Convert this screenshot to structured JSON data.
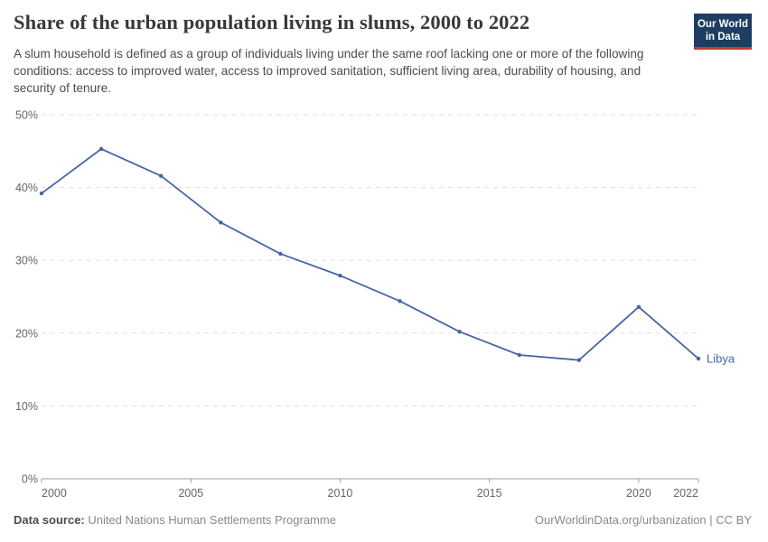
{
  "header": {
    "title": "Share of the urban population living in slums, 2000 to 2022",
    "subtitle": "A slum household is defined as a group of individuals living under the same roof lacking one or more of the following conditions: access to improved water, access to improved sanitation, sufficient living area, durability of housing, and security of tenure."
  },
  "logo": {
    "line1": "Our World",
    "line2": "in Data",
    "bg_color": "#1d3d63",
    "bar_color": "#cf3a31"
  },
  "chart_data": {
    "type": "line",
    "title": "Share of the urban population living in slums, 2000 to 2022",
    "x": [
      2000,
      2002,
      2004,
      2006,
      2008,
      2010,
      2012,
      2014,
      2016,
      2018,
      2020,
      2022
    ],
    "series": [
      {
        "name": "Libya",
        "color": "#4666a4",
        "values": [
          39.2,
          45.3,
          41.6,
          35.2,
          30.9,
          27.9,
          24.4,
          20.2,
          17.0,
          16.3,
          23.6,
          16.5
        ]
      }
    ],
    "xlabel": "",
    "ylabel": "",
    "ylim": [
      0,
      50
    ],
    "xlim": [
      2000,
      2022
    ],
    "yticks": [
      0,
      10,
      20,
      30,
      40,
      50
    ],
    "ytick_suffix": "%",
    "xticks": [
      2000,
      2005,
      2010,
      2015,
      2020,
      2022
    ],
    "grid": "horizontal-dashed",
    "legend": "end-of-line-label",
    "grid_color": "#e0e0e0",
    "axis_color": "#9e9e9e",
    "tick_label_color": "#666666"
  },
  "footer": {
    "datasource_label": "Data source:",
    "datasource": "United Nations Human Settlements Programme",
    "attribution": "OurWorldinData.org/urbanization | CC BY"
  }
}
